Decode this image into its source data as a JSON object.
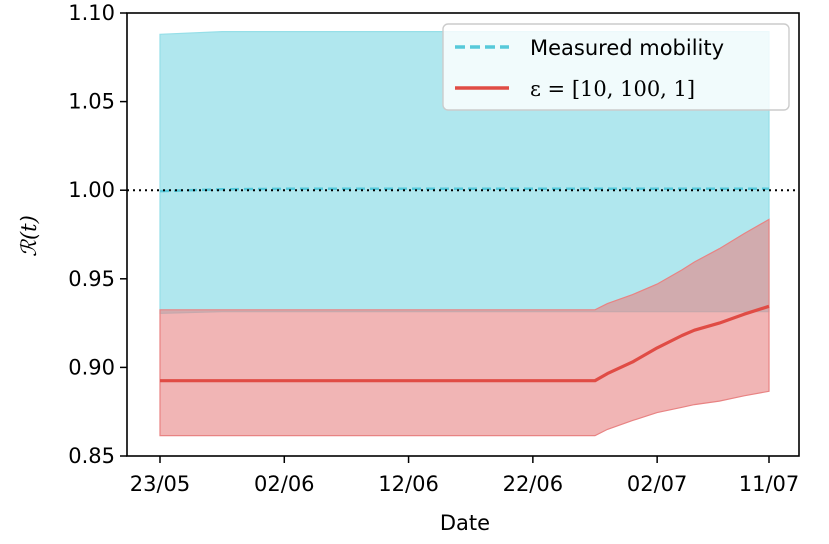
{
  "chart_data": {
    "type": "line",
    "xlabel": "Date",
    "ylabel": "R(t)",
    "ylim": [
      0.85,
      1.1
    ],
    "x_tick_labels": [
      "23/05",
      "02/06",
      "12/06",
      "22/06",
      "02/07",
      "11/07"
    ],
    "y_tick_labels": [
      "0.85",
      "0.90",
      "0.95",
      "1.00",
      "1.05",
      "1.10"
    ],
    "y_ticks": [
      0.85,
      0.9,
      0.95,
      1.0,
      1.05,
      1.1
    ],
    "x": [
      "2020-05-23",
      "2020-05-28",
      "2020-06-02",
      "2020-06-12",
      "2020-06-22",
      "2020-06-27",
      "2020-06-28",
      "2020-06-30",
      "2020-07-02",
      "2020-07-04",
      "2020-07-05",
      "2020-07-07",
      "2020-07-09",
      "2020-07-11"
    ],
    "reference_line": {
      "y": 1.0,
      "style": "dotted",
      "color": "#000000"
    },
    "series": [
      {
        "name": "Measured mobility",
        "style": "dashed",
        "color": "#57c9da",
        "band_color": "#96dfe8",
        "values": [
          0.9995,
          1.0005,
          1.0008,
          1.0008,
          1.0008,
          1.0008,
          1.0008,
          1.0008,
          1.0008,
          1.0008,
          1.0008,
          1.0008,
          1.0008,
          1.0008
        ],
        "lower": [
          0.9305,
          0.9315,
          0.9315,
          0.9315,
          0.9315,
          0.9315,
          0.9315,
          0.9315,
          0.9315,
          0.9315,
          0.9315,
          0.9315,
          0.9315,
          0.9315
        ],
        "upper": [
          1.088,
          1.0895,
          1.0895,
          1.0895,
          1.0895,
          1.0895,
          1.0895,
          1.0895,
          1.0895,
          1.0895,
          1.0895,
          1.0895,
          1.0895,
          1.0895
        ]
      },
      {
        "name": "ε = [10, 100, 1]",
        "style": "solid",
        "color": "#e04c45",
        "band_color": "#e88383",
        "values": [
          0.8925,
          0.8925,
          0.8925,
          0.8925,
          0.8925,
          0.8925,
          0.8965,
          0.903,
          0.911,
          0.918,
          0.921,
          0.925,
          0.93,
          0.9345
        ],
        "lower": [
          0.8615,
          0.8615,
          0.8615,
          0.8615,
          0.8615,
          0.8615,
          0.865,
          0.87,
          0.8745,
          0.8775,
          0.879,
          0.881,
          0.884,
          0.8865
        ],
        "upper": [
          0.9325,
          0.9325,
          0.9325,
          0.9325,
          0.9325,
          0.9325,
          0.936,
          0.941,
          0.947,
          0.955,
          0.9595,
          0.967,
          0.9755,
          0.9835
        ]
      }
    ],
    "legend_placement": "top-right",
    "grid": false
  }
}
